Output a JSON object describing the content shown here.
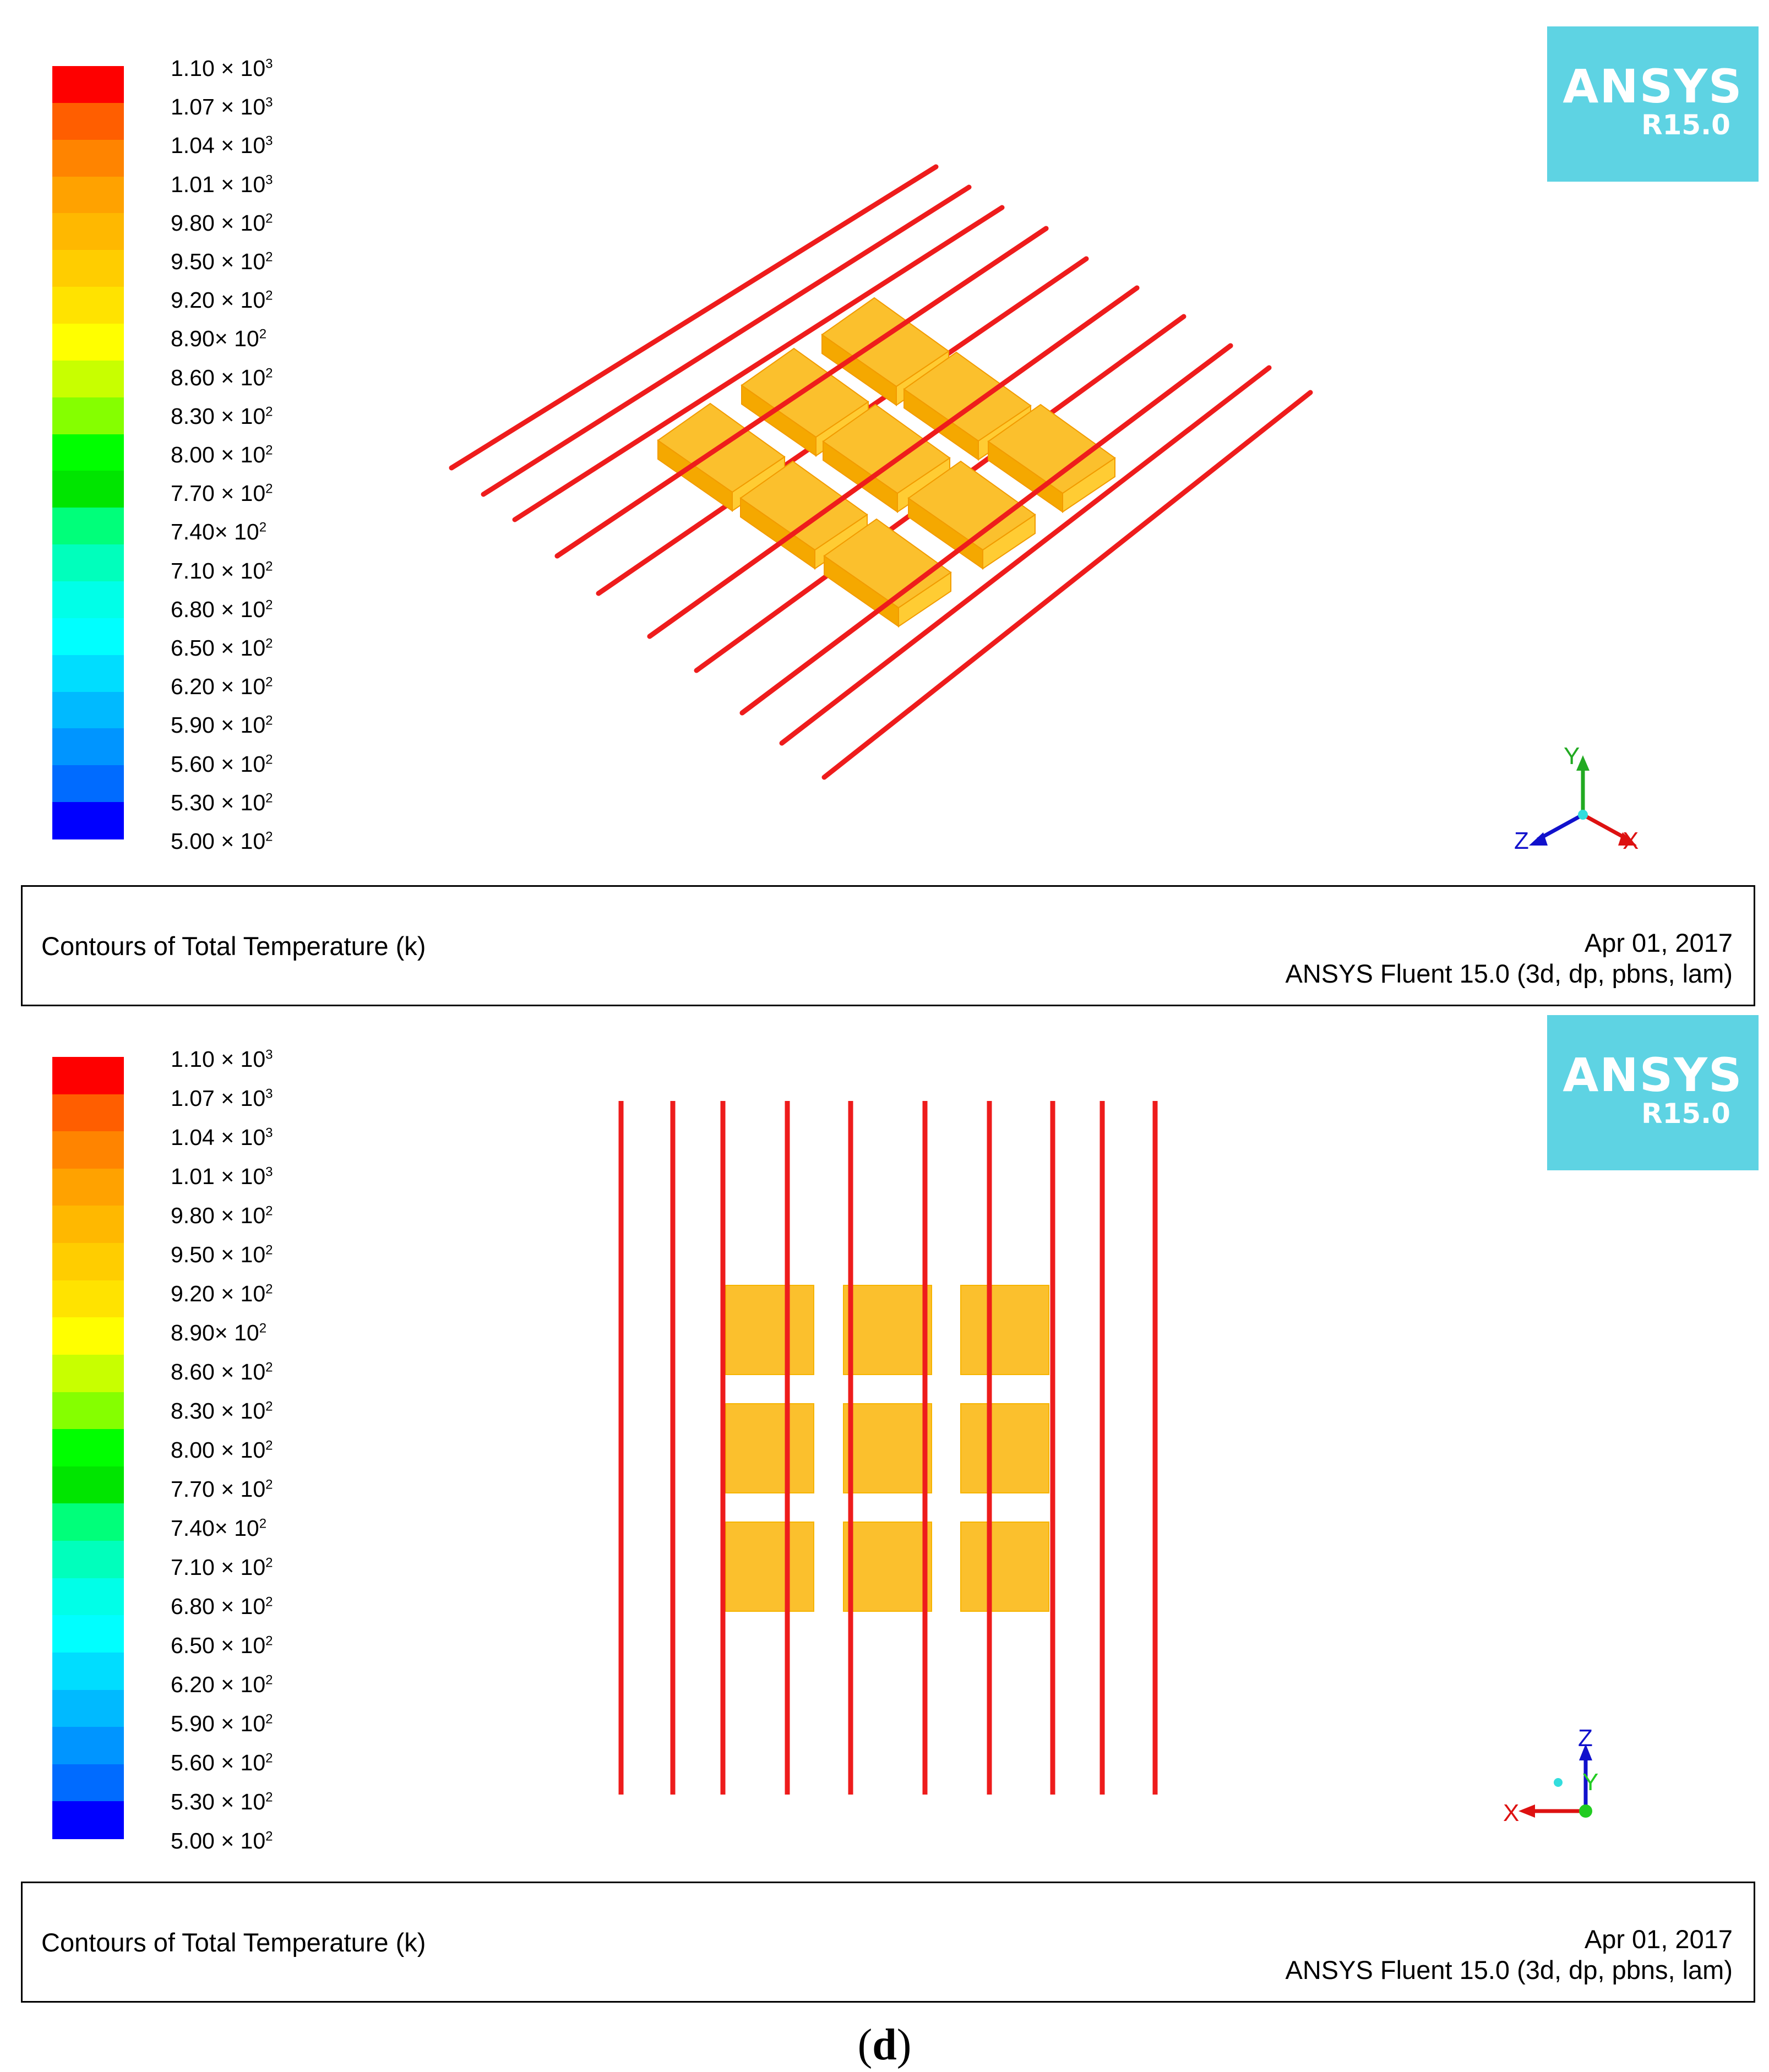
{
  "colorbar": {
    "colors": [
      "#fe0000",
      "#ff5e00",
      "#ff8400",
      "#ffa200",
      "#ffb800",
      "#ffcd00",
      "#ffe300",
      "#ffff00",
      "#c8ff00",
      "#85ff00",
      "#00ff00",
      "#00e500",
      "#00ff7a",
      "#00ffbc",
      "#00ffe8",
      "#00ffff",
      "#00ddff",
      "#00baff",
      "#0095ff",
      "#006bff",
      "#0000ff"
    ],
    "labels": [
      {
        "m": "1.10 × 10",
        "e": "3"
      },
      {
        "m": "1.07 × 10",
        "e": "3"
      },
      {
        "m": "1.04 × 10",
        "e": "3"
      },
      {
        "m": "1.01 × 10",
        "e": "3"
      },
      {
        "m": "9.80 × 10",
        "e": "2"
      },
      {
        "m": "9.50 × 10",
        "e": "2"
      },
      {
        "m": "9.20 × 10",
        "e": "2"
      },
      {
        "m": "8.90× 10",
        "e": "2"
      },
      {
        "m": "8.60 × 10",
        "e": "2"
      },
      {
        "m": "8.30 × 10",
        "e": "2"
      },
      {
        "m": "8.00 × 10",
        "e": "2"
      },
      {
        "m": "7.70 × 10",
        "e": "2"
      },
      {
        "m": "7.40× 10",
        "e": "2"
      },
      {
        "m": "7.10 × 10",
        "e": "2"
      },
      {
        "m": "6.80 × 10",
        "e": "2"
      },
      {
        "m": "6.50 × 10",
        "e": "2"
      },
      {
        "m": "6.20 × 10",
        "e": "2"
      },
      {
        "m": "5.90 × 10",
        "e": "2"
      },
      {
        "m": "5.60 × 10",
        "e": "2"
      },
      {
        "m": "5.30 × 10",
        "e": "2"
      },
      {
        "m": "5.00 × 10",
        "e": "2"
      }
    ]
  },
  "logo": {
    "brand": "ANSYS",
    "version": "R15.0",
    "color": "#5ed3e3"
  },
  "panels": [
    {
      "view": "isometric",
      "title": "Contours of Total Temperature (k)",
      "date": "Apr 01, 2017",
      "solver": "ANSYS Fluent 15.0 (3d, dp, pbns, lam)",
      "axes": {
        "up": "Y",
        "left": "Z",
        "right": "X"
      }
    },
    {
      "view": "front",
      "title": "Contours of Total Temperature (k)",
      "date": "Apr 01, 2017",
      "solver": "ANSYS Fluent 15.0 (3d, dp, pbns, lam)",
      "axes": {
        "up": "Z",
        "mid": "Y",
        "left": "X"
      }
    }
  ],
  "scene_colors": {
    "rod": "#ee1c1c",
    "block": "#fbc02d",
    "block_edge": "#f29b00",
    "block_side": "#f5a800"
  },
  "caption": "(d)"
}
